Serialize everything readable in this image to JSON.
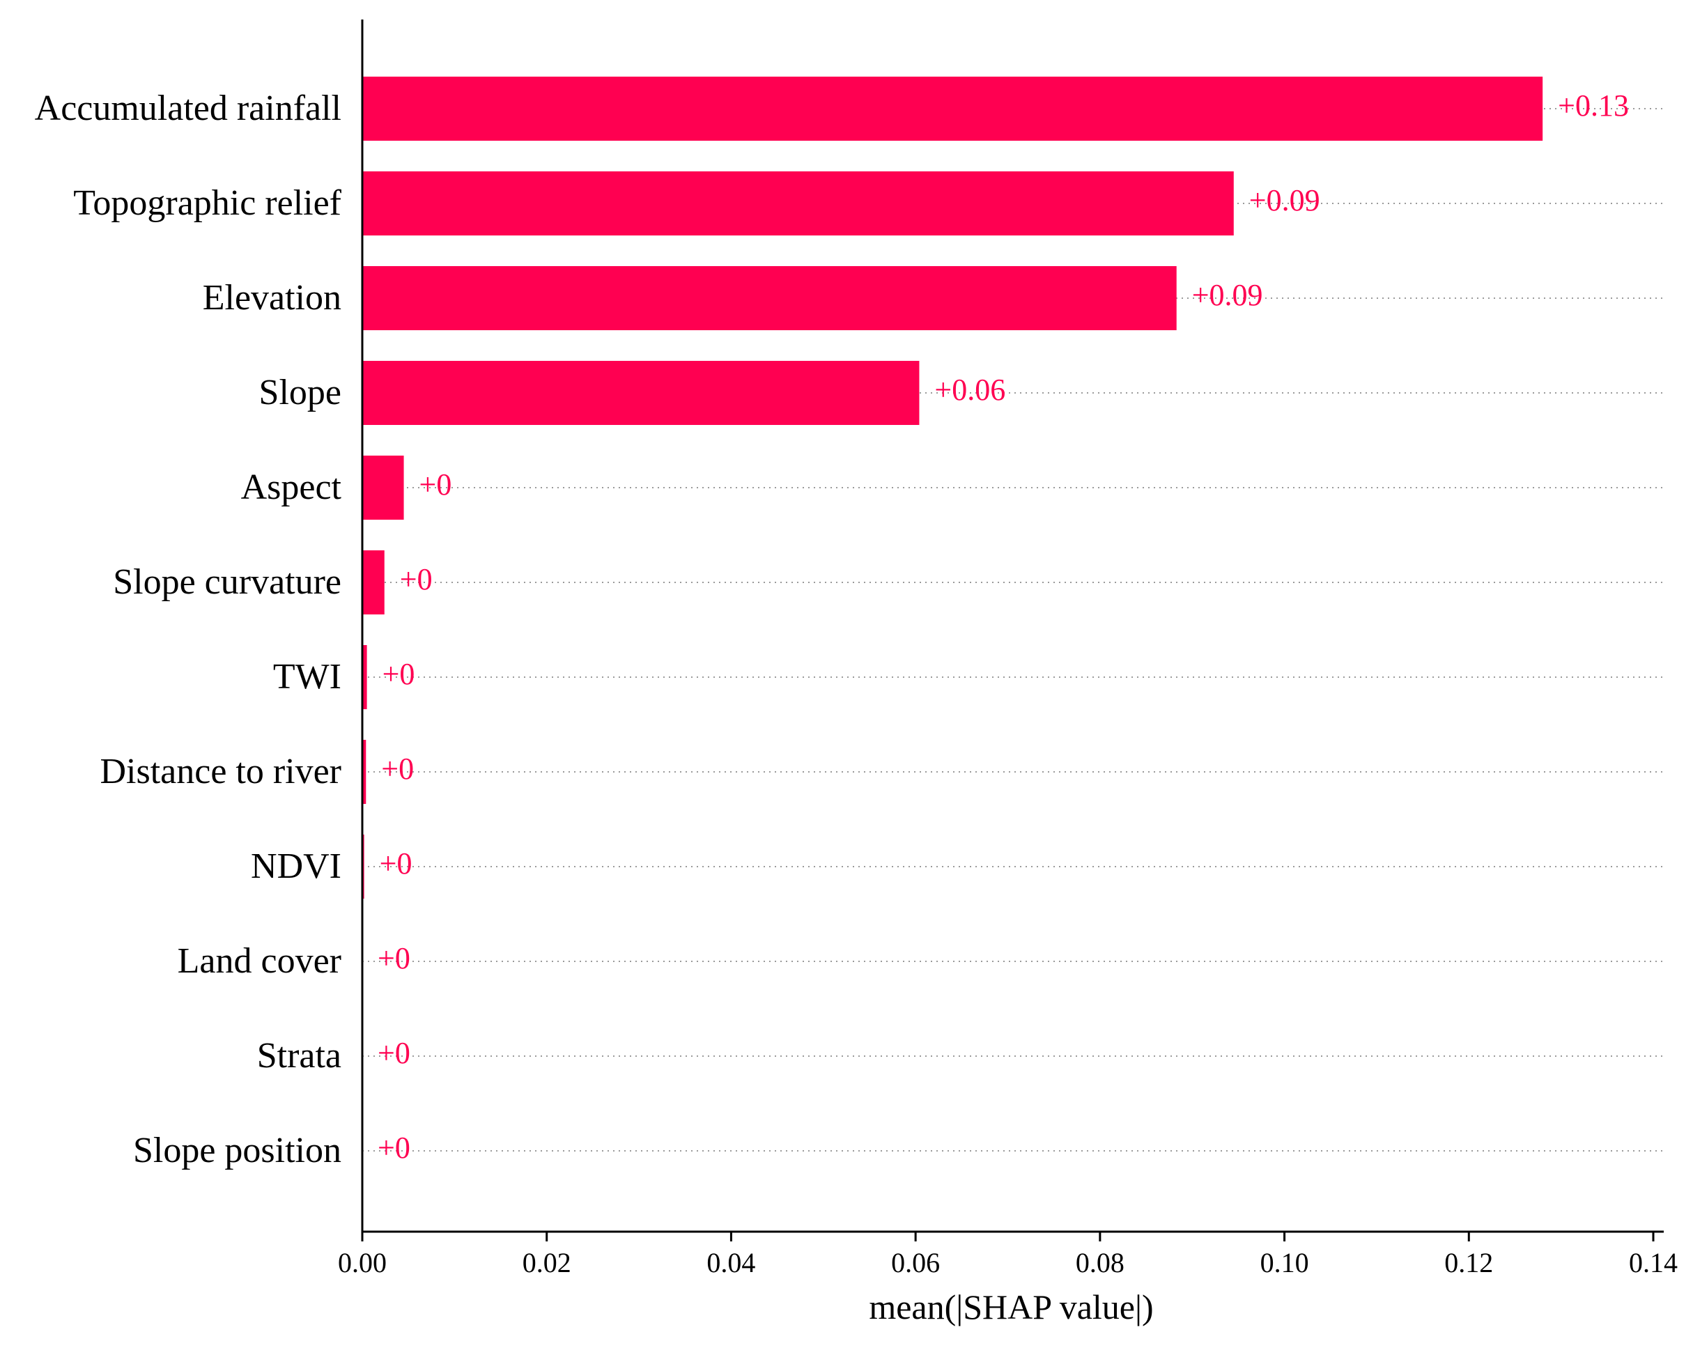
{
  "chart_data": {
    "type": "bar",
    "orientation": "horizontal",
    "title": "",
    "xlabel": "mean(|SHAP value|)",
    "ylabel": "",
    "xlim": [
      0,
      0.14
    ],
    "xticks": [
      0.0,
      0.02,
      0.04,
      0.06,
      0.08,
      0.1,
      0.12,
      0.14
    ],
    "xtick_labels": [
      "0.00",
      "0.02",
      "0.04",
      "0.06",
      "0.08",
      "0.10",
      "0.12",
      "0.14"
    ],
    "grid": "dotted horizontal line per bar",
    "categories": [
      "Accumulated rainfall",
      "Topographic relief",
      "Elevation",
      "Slope",
      "Aspect",
      "Slope curvature",
      "TWI",
      "Distance to river",
      "NDVI",
      "Land cover",
      "Strata",
      "Slope position"
    ],
    "values": [
      0.128,
      0.0945,
      0.0883,
      0.0604,
      0.0045,
      0.0024,
      0.0005,
      0.0004,
      0.0002,
      0.0,
      0.0,
      0.0
    ],
    "value_labels": [
      "+0.13",
      "+0.09",
      "+0.09",
      "+0.06",
      "+0",
      "+0",
      "+0",
      "+0",
      "+0",
      "+0",
      "+0",
      "+0"
    ],
    "colors": {
      "bar": "#ff0051",
      "label": "#ff0051",
      "axis": "#000000",
      "grid": "#9a9a9a"
    }
  }
}
